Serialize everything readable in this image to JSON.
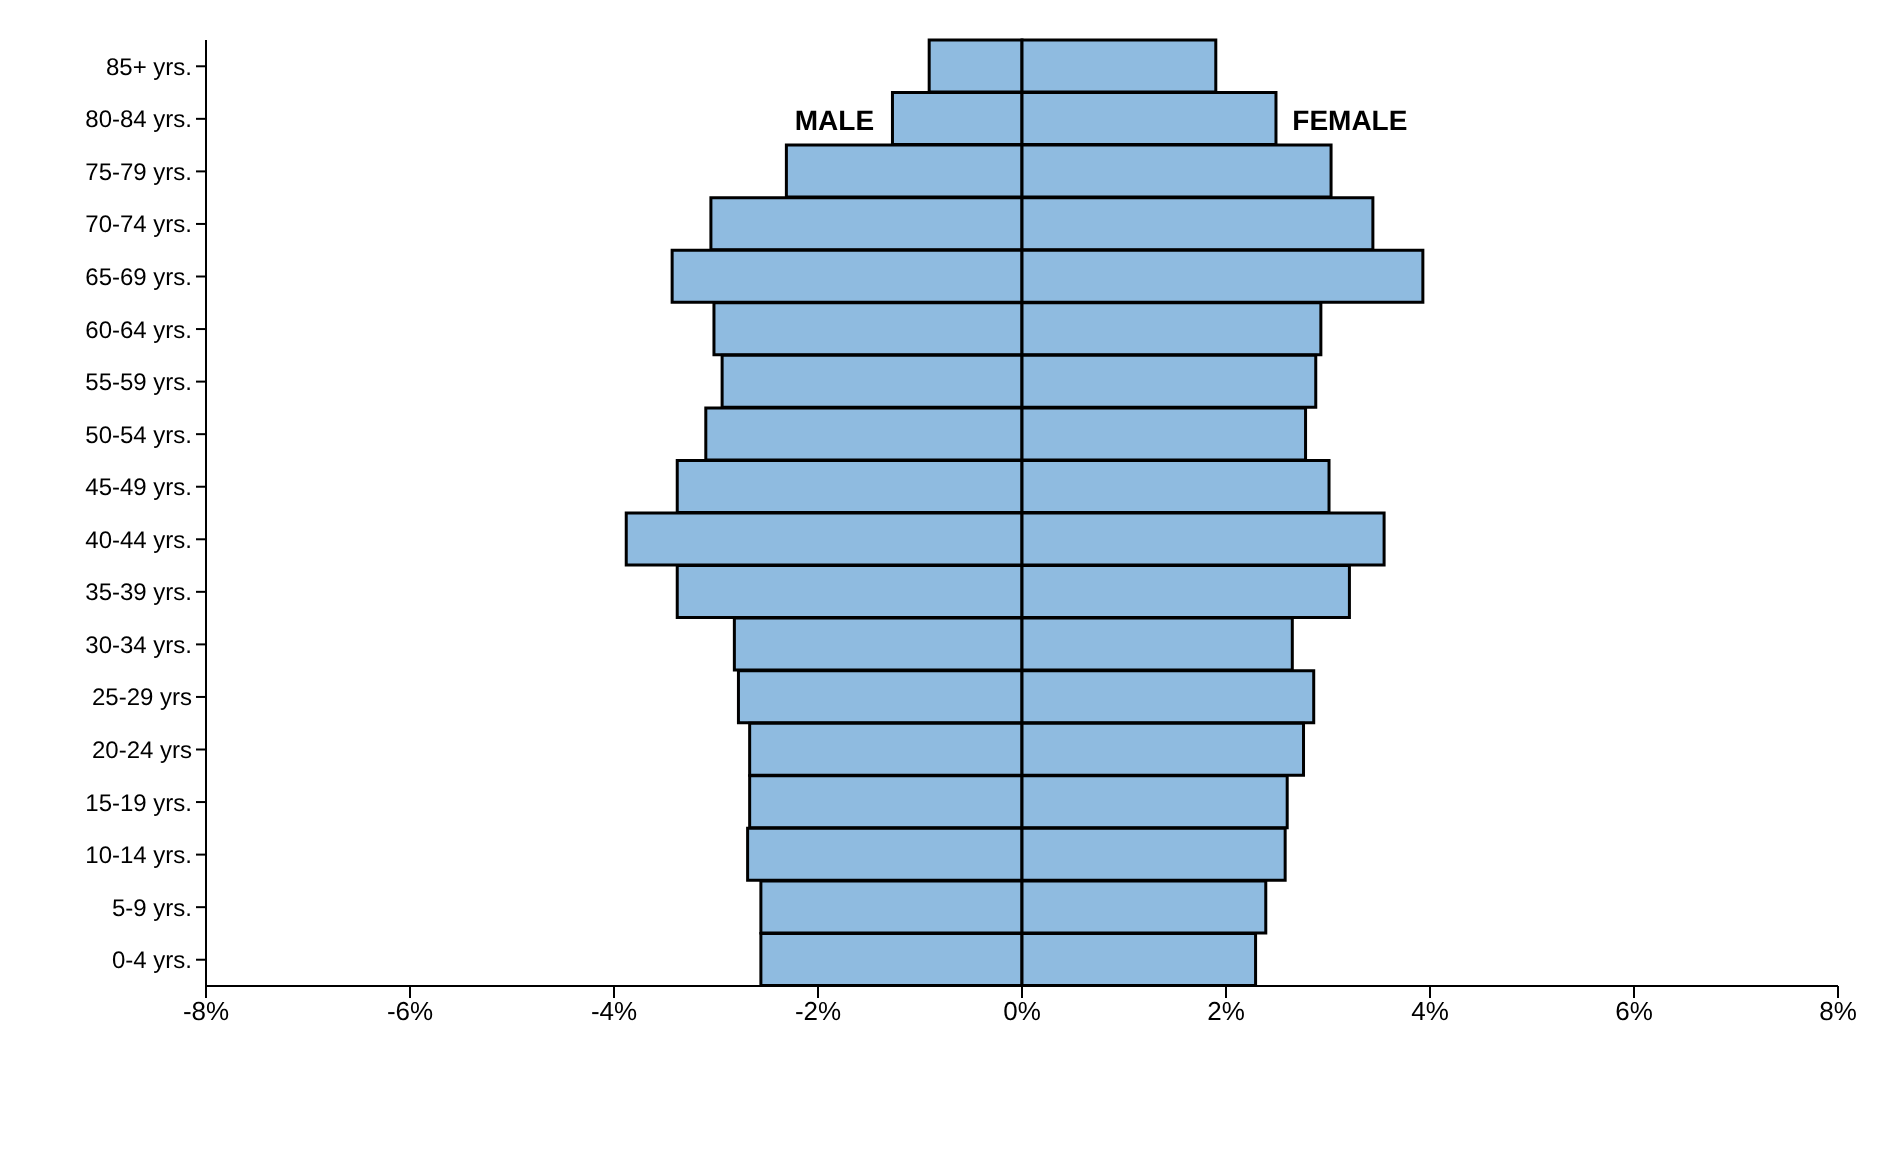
{
  "chart_data": {
    "type": "bar",
    "orientation": "horizontal",
    "stacked": true,
    "categories": [
      "85+ yrs.",
      "80-84 yrs.",
      "75-79 yrs.",
      "70-74 yrs.",
      "65-69 yrs.",
      "60-64 yrs.",
      "55-59 yrs.",
      "50-54 yrs.",
      "45-49 yrs.",
      "40-44 yrs.",
      "35-39 yrs.",
      "30-34 yrs.",
      "25-29 yrs",
      "20-24 yrs",
      "15-19 yrs.",
      "10-14 yrs.",
      "5-9 yrs.",
      "0-4 yrs."
    ],
    "series": [
      {
        "name": "MALE",
        "color": "#8fbbe0",
        "values": [
          -0.91,
          -1.27,
          -2.31,
          -3.05,
          -3.43,
          -3.02,
          -2.94,
          -3.1,
          -3.38,
          -3.88,
          -3.38,
          -2.82,
          -2.78,
          -2.67,
          -2.67,
          -2.69,
          -2.56,
          -2.56
        ]
      },
      {
        "name": "FEMALE",
        "color": "#8fbbe0",
        "values": [
          1.9,
          2.49,
          3.03,
          3.44,
          3.93,
          2.93,
          2.88,
          2.78,
          3.01,
          3.55,
          3.21,
          2.65,
          2.86,
          2.76,
          2.6,
          2.58,
          2.39,
          2.29
        ]
      }
    ],
    "xlim": [
      -8,
      8
    ],
    "xticks": [
      {
        "value": -8,
        "label": "-8%"
      },
      {
        "value": -6,
        "label": "-6%"
      },
      {
        "value": -4,
        "label": "-4%"
      },
      {
        "value": -2,
        "label": "-2%"
      },
      {
        "value": 0,
        "label": "0%"
      },
      {
        "value": 2,
        "label": "2%"
      },
      {
        "value": 4,
        "label": "4%"
      },
      {
        "value": 6,
        "label": "6%"
      },
      {
        "value": 8,
        "label": "8%"
      }
    ],
    "grid": false,
    "legend": false
  }
}
